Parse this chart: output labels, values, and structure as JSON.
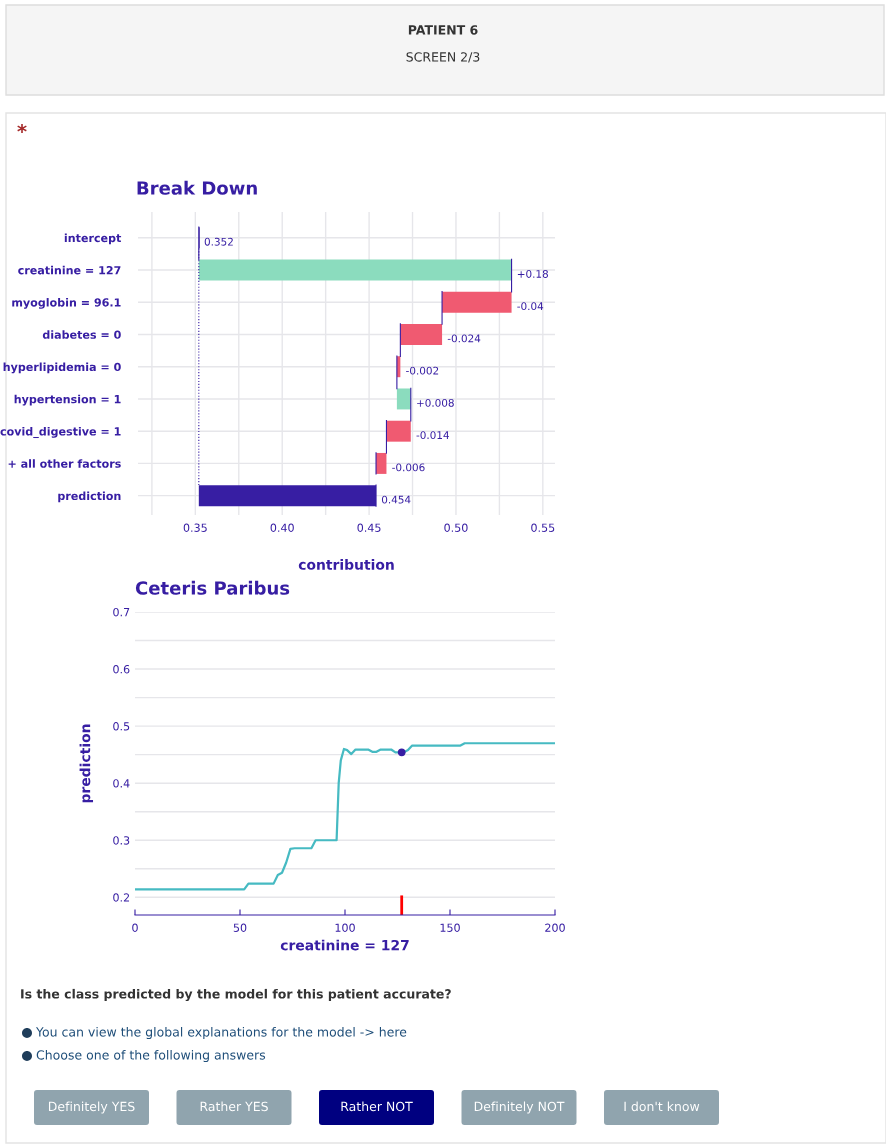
{
  "chart_data": [
    {
      "type": "other",
      "annotations": [
        "PATIENT 6",
        "SCREEN 2/3",
        "*"
      ]
    },
    {
      "type": "bar",
      "title": "Break Down",
      "xlabel": "contribution",
      "orientation": "horizontal",
      "categories": [
        "intercept",
        "creatinine = 127",
        "myoglobin = 96.1",
        "diabetes = 0",
        "hyperlipidemia = 0",
        "hypertension = 1",
        "covid_digestive = 1",
        "+ all other factors",
        "prediction"
      ],
      "base": [
        0.352,
        0.352,
        0.532,
        0.492,
        0.468,
        0.466,
        0.474,
        0.46,
        0.352
      ],
      "values": [
        0,
        0.18,
        -0.04,
        -0.024,
        -0.002,
        0.008,
        -0.014,
        -0.006,
        0.102
      ],
      "value_labels": [
        "0.352",
        "+0.18",
        "-0.04",
        "-0.024",
        "-0.002",
        "+0.008",
        "-0.014",
        "-0.006",
        "0.454"
      ],
      "colors": [
        "#371ea3",
        "#8bdcbe",
        "#f05a71",
        "#f05a71",
        "#f05a71",
        "#8bdcbe",
        "#f05a71",
        "#f05a71",
        "#371ea3"
      ],
      "xlim": [
        0.317,
        0.557
      ],
      "xticks": [
        {
          "value": 0.325,
          "label": null
        },
        {
          "value": 0.35,
          "label": "0.35"
        },
        {
          "value": 0.375,
          "label": null
        },
        {
          "value": 0.4,
          "label": "0.40"
        },
        {
          "value": 0.425,
          "label": null
        },
        {
          "value": 0.45,
          "label": "0.45"
        },
        {
          "value": 0.475,
          "label": null
        },
        {
          "value": 0.5,
          "label": "0.50"
        },
        {
          "value": 0.525,
          "label": null
        },
        {
          "value": 0.55,
          "label": "0.55"
        }
      ],
      "grid": true
    },
    {
      "type": "line",
      "title": "Ceteris Paribus",
      "xlabel": "creatinine = 127",
      "ylabel": "prediction",
      "series": [
        {
          "type": "line",
          "color": "#46bac2",
          "x": [
            0,
            52,
            54,
            66,
            68,
            70,
            72,
            74,
            76,
            84,
            86,
            96,
            97,
            98,
            99.5,
            101,
            103,
            105,
            111,
            113,
            115,
            117,
            122,
            124,
            128,
            130,
            132,
            155,
            157,
            200
          ],
          "values": [
            0.214,
            0.214,
            0.224,
            0.224,
            0.239,
            0.243,
            0.261,
            0.285,
            0.286,
            0.286,
            0.3,
            0.3,
            0.4,
            0.44,
            0.46,
            0.458,
            0.451,
            0.459,
            0.459,
            0.455,
            0.455,
            0.459,
            0.459,
            0.454,
            0.454,
            0.458,
            0.466,
            0.466,
            0.47,
            0.47
          ]
        },
        {
          "type": "scatter",
          "color": "#371ea3",
          "x": [
            127
          ],
          "values": [
            0.454
          ],
          "marker": "circle"
        }
      ],
      "xlim": [
        0,
        200
      ],
      "xticks": [
        0,
        50,
        100,
        150,
        200
      ],
      "ylim": [
        0.169,
        0.7
      ],
      "yticks": [
        0.2,
        {
          "value": 0.25,
          "label": null
        },
        0.3,
        {
          "value": 0.35,
          "label": null
        },
        0.4,
        {
          "value": 0.45,
          "label": null
        },
        0.5,
        {
          "value": 0.55,
          "label": null
        },
        0.6,
        {
          "value": 0.65,
          "label": null
        },
        0.7
      ],
      "grid": "y"
    },
    {
      "type": "other",
      "annotations": [
        "Is the class predicted by the model for this patient accurate?",
        "You can view the global explanations for the model -> here",
        "Choose one of the following answers",
        "Definitely YES",
        "Rather YES",
        "Rather NOT",
        "Definitely NOT",
        "I don't know"
      ],
      "colors": [
        "#90a4ae",
        "#90a4ae",
        "#000080",
        "#90a4ae",
        "#90a4ae"
      ]
    }
  ]
}
